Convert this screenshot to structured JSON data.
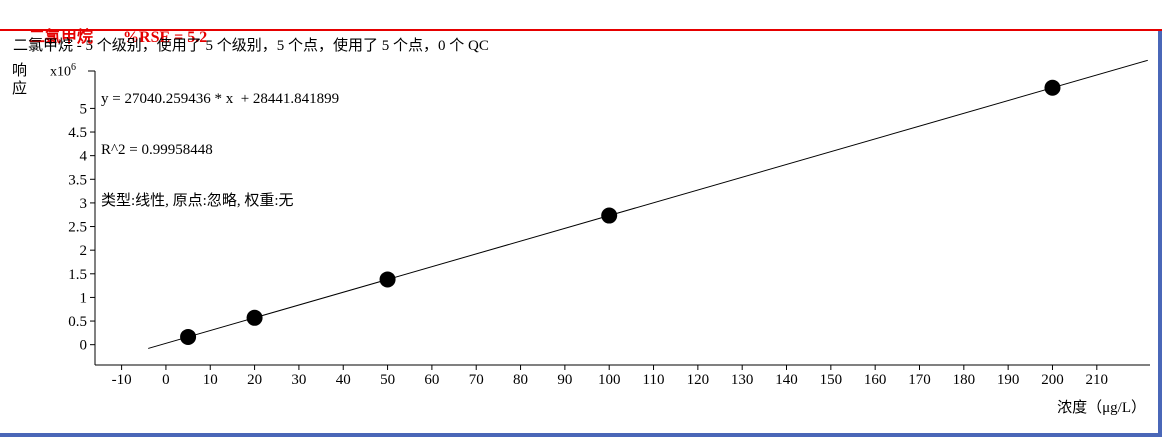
{
  "header": {
    "compound": "二氯甲烷",
    "rse": "%RSE = 5.2"
  },
  "colors": {
    "accent_red": "#e60000",
    "frame_blue": "#4a67b8",
    "point_color": "#000000",
    "line_color": "#000000"
  },
  "chart_data": {
    "type": "scatter",
    "title": "二氯甲烷 - 5 个级别，使用了 5 个级别，5 个点，使用了 5 个点，0 个 QC",
    "annotations": {
      "equation": "y = 27040.259436 * x  + 28441.841899",
      "r_squared": "R^2 = 0.99958448",
      "fit_type": "类型:线性, 原点:忽略, 权重:无"
    },
    "xlabel": "浓度（μg/L）",
    "ylabel": "响应",
    "y_multiplier_base": "x10",
    "y_multiplier_exp": "6",
    "x": [
      5,
      20,
      50,
      100,
      200
    ],
    "y_millions": [
      0.1636,
      0.5692,
      1.3805,
      2.7325,
      5.4365
    ],
    "slope": 27040.259436,
    "intercept": 28441.841899,
    "y_scale": 1000000,
    "r2": 0.99958448,
    "num_levels": 5,
    "num_points": 5,
    "num_qc": 0,
    "xlim": [
      -16,
      222
    ],
    "ylim": [
      -0.43,
      6.13
    ],
    "x_ticks": [
      -10,
      0,
      10,
      20,
      30,
      40,
      50,
      60,
      70,
      80,
      90,
      100,
      110,
      120,
      130,
      140,
      150,
      160,
      170,
      180,
      190,
      200,
      210
    ],
    "y_ticks": [
      {
        "v": 0,
        "label": "0"
      },
      {
        "v": 0.5,
        "label": "0.5"
      },
      {
        "v": 1,
        "label": "1"
      },
      {
        "v": 1.5,
        "label": "1.5"
      },
      {
        "v": 2,
        "label": "2"
      },
      {
        "v": 2.5,
        "label": "2.5"
      },
      {
        "v": 3,
        "label": "3"
      },
      {
        "v": 3.5,
        "label": "3.5"
      },
      {
        "v": 4,
        "label": "4"
      },
      {
        "v": 4.5,
        "label": "4.5"
      },
      {
        "v": 5,
        "label": "5"
      }
    ],
    "fit_line_x_range": [
      -4,
      221.5
    ],
    "grid": false,
    "legend": "none"
  }
}
